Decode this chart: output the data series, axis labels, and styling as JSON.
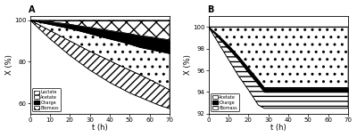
{
  "panel_A": {
    "t": [
      0,
      5,
      10,
      15,
      20,
      25,
      30,
      35,
      40,
      45,
      50,
      55,
      60,
      65,
      70
    ],
    "top_line": [
      100,
      100,
      100,
      100,
      100,
      100,
      100,
      100,
      100,
      100,
      100,
      100,
      100,
      100,
      100
    ],
    "biomass_top": [
      100,
      100,
      100,
      100,
      100,
      100,
      100,
      100,
      100,
      100,
      100,
      100,
      100,
      100,
      100
    ],
    "biomass_bot": [
      100,
      99.6,
      99.2,
      98.6,
      98.0,
      97.2,
      96.5,
      95.7,
      95.0,
      94.2,
      93.5,
      92.5,
      92.0,
      91.2,
      90.5
    ],
    "charge_top": [
      100,
      99.6,
      99.2,
      98.6,
      98.0,
      97.2,
      96.5,
      95.7,
      95.0,
      94.2,
      93.5,
      92.5,
      92.0,
      91.2,
      90.5
    ],
    "charge_bot": [
      100,
      99.0,
      98.0,
      97.0,
      96.0,
      94.8,
      93.5,
      92.2,
      91.0,
      89.8,
      88.5,
      87.0,
      86.0,
      85.0,
      84.0
    ],
    "acetate_top": [
      100,
      99.0,
      98.0,
      97.0,
      96.0,
      94.8,
      93.5,
      92.2,
      91.0,
      89.8,
      88.5,
      87.0,
      86.0,
      85.0,
      84.0
    ],
    "acetate_bot": [
      100,
      97.5,
      95.0,
      92.5,
      90.0,
      87.5,
      85.0,
      82.8,
      80.5,
      78.2,
      76.0,
      73.8,
      71.5,
      69.0,
      66.5
    ],
    "lactate_top": [
      100,
      97.5,
      95.0,
      92.5,
      90.0,
      87.5,
      85.0,
      82.8,
      80.5,
      78.2,
      76.0,
      73.8,
      71.5,
      69.0,
      66.5
    ],
    "lactate_bot": [
      100,
      95.5,
      91.0,
      87.0,
      83.0,
      79.5,
      76.0,
      73.0,
      70.0,
      67.5,
      65.0,
      63.0,
      61.0,
      59.0,
      57.5
    ],
    "ylim": [
      55,
      102
    ],
    "yticks": [
      60,
      80,
      100
    ],
    "xticks": [
      0,
      10,
      20,
      30,
      40,
      50,
      60,
      70
    ],
    "xlabel": "t (h)",
    "ylabel": "X (%)",
    "label": "A"
  },
  "panel_B": {
    "t": [
      0,
      5,
      10,
      15,
      20,
      25,
      28,
      35,
      40,
      50,
      60,
      70
    ],
    "top_line": [
      100,
      100,
      100,
      100,
      100,
      100,
      100,
      100,
      100,
      100,
      100,
      100
    ],
    "acetate_top": [
      100,
      100,
      100,
      100,
      100,
      100,
      100,
      100,
      100,
      100,
      100,
      100
    ],
    "acetate_bot": [
      100,
      99.2,
      98.3,
      97.3,
      96.2,
      95.1,
      94.4,
      94.4,
      94.4,
      94.4,
      94.4,
      94.4
    ],
    "charge_top": [
      100,
      99.2,
      98.3,
      97.3,
      96.2,
      95.1,
      94.4,
      94.4,
      94.4,
      94.4,
      94.4,
      94.4
    ],
    "charge_bot": [
      100,
      99.0,
      98.0,
      97.0,
      95.8,
      94.7,
      94.0,
      94.0,
      94.0,
      94.0,
      94.0,
      94.0
    ],
    "biomass_top": [
      100,
      99.0,
      98.0,
      97.0,
      95.8,
      94.7,
      94.0,
      94.0,
      94.0,
      94.0,
      94.0,
      94.0
    ],
    "biomass_bot": [
      100,
      98.5,
      97.0,
      95.5,
      94.2,
      92.8,
      92.5,
      92.5,
      92.5,
      92.5,
      92.5,
      92.5
    ],
    "ylim": [
      92,
      101
    ],
    "yticks": [
      92,
      94,
      96,
      98,
      100
    ],
    "xticks": [
      0,
      10,
      20,
      30,
      40,
      50,
      60,
      70
    ],
    "xlabel": "t (h)",
    "ylabel": "X (%)",
    "label": "B"
  },
  "bg_color": "#ffffff"
}
